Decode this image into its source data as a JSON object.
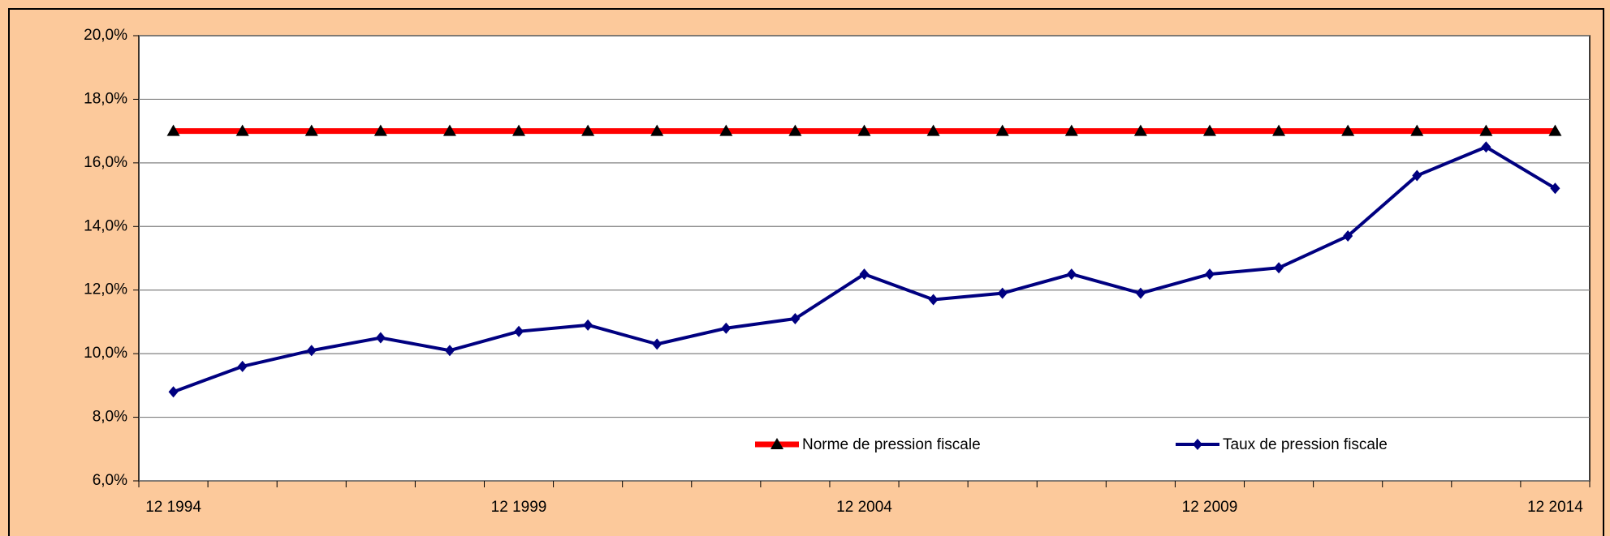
{
  "chart_data": {
    "type": "line",
    "categories": [
      "12 1994",
      null,
      null,
      null,
      null,
      "12 1999",
      null,
      null,
      null,
      null,
      "12 2004",
      null,
      null,
      null,
      null,
      "12 2009",
      null,
      null,
      null,
      null,
      "12 2014"
    ],
    "series": [
      {
        "name": "Norme de pression fiscale",
        "color": "#ff0000",
        "marker": "triangle",
        "marker_color": "#000000",
        "values": [
          17,
          17,
          17,
          17,
          17,
          17,
          17,
          17,
          17,
          17,
          17,
          17,
          17,
          17,
          17,
          17,
          17,
          17,
          17,
          17,
          17
        ]
      },
      {
        "name": "Taux de pression fiscale",
        "color": "#000080",
        "marker": "diamond",
        "marker_color": "#000080",
        "values": [
          8.8,
          9.6,
          10.1,
          10.5,
          10.1,
          10.7,
          10.9,
          10.3,
          10.8,
          11.1,
          12.5,
          11.7,
          11.9,
          12.5,
          11.9,
          12.5,
          12.7,
          13.7,
          15.6,
          16.5,
          15.2
        ]
      }
    ],
    "ylim": [
      6,
      20
    ],
    "yticks": [
      {
        "value": 6,
        "label": "6,0%"
      },
      {
        "value": 8,
        "label": "8,0%"
      },
      {
        "value": 10,
        "label": "10,0%"
      },
      {
        "value": 12,
        "label": "12,0%"
      },
      {
        "value": 14,
        "label": "14,0%"
      },
      {
        "value": 16,
        "label": "16,0%"
      },
      {
        "value": 18,
        "label": "18,0%"
      },
      {
        "value": 20,
        "label": "20,0%"
      }
    ],
    "grid": true,
    "legend": "bottom"
  }
}
